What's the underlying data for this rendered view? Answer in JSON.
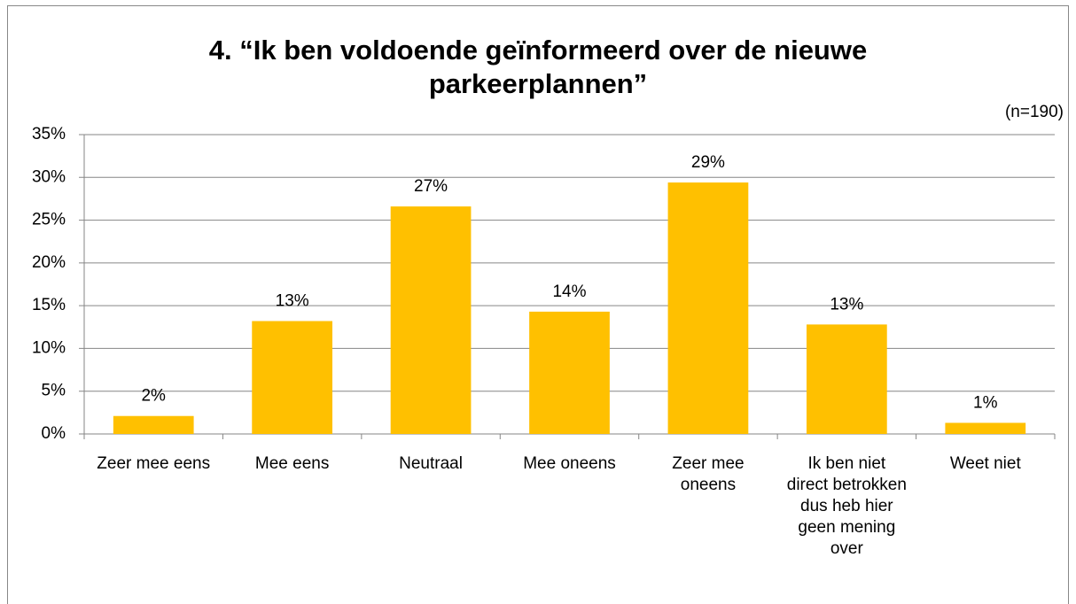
{
  "chart_data": {
    "type": "bar",
    "title": "4. “Ik ben voldoende geïnformeerd over de nieuwe parkeerplannen”",
    "annotation": "(n=190)",
    "categories": [
      "Zeer mee eens",
      "Mee eens",
      "Neutraal",
      "Mee oneens",
      "Zeer mee oneens",
      "Ik ben niet direct betrokken dus heb hier geen mening over",
      "Weet niet"
    ],
    "values": [
      2.1,
      13.2,
      26.6,
      14.3,
      29.4,
      12.8,
      1.3
    ],
    "value_labels": [
      "2%",
      "13%",
      "27%",
      "14%",
      "29%",
      "13%",
      "1%"
    ],
    "color": "#ffc000",
    "ylim": [
      0,
      35
    ],
    "yticks": [
      {
        "value": 0,
        "label": "0%"
      },
      {
        "value": 5,
        "label": "5%"
      },
      {
        "value": 10,
        "label": "10%"
      },
      {
        "value": 15,
        "label": "15%"
      },
      {
        "value": 20,
        "label": "20%"
      },
      {
        "value": 25,
        "label": "25%"
      },
      {
        "value": 30,
        "label": "30%"
      },
      {
        "value": 35,
        "label": "35%"
      }
    ],
    "grid": true
  }
}
